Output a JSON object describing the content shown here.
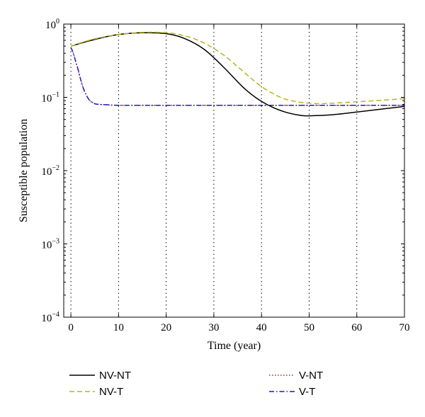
{
  "colors": {
    "NV-NT": "#000000",
    "NV-T": "#b5b51e",
    "V-NT": "#9e2a1e",
    "V-T": "#1a1acc"
  },
  "chart_data": {
    "type": "line",
    "title": "",
    "xlabel": "Time (year)",
    "ylabel": "Susceptible population",
    "yscale": "log",
    "xlim": [
      -1.5,
      70
    ],
    "ylim": [
      0.0001,
      1
    ],
    "xticks": [
      0,
      10,
      20,
      30,
      40,
      50,
      60,
      70
    ],
    "xtick_labels": [
      "0",
      "10",
      "20",
      "30",
      "40",
      "50",
      "60",
      "70"
    ],
    "yticks": [
      0.0001,
      0.001,
      0.01,
      0.1,
      1
    ],
    "ytick_labels": [
      {
        "base": "10",
        "exp": "−4"
      },
      {
        "base": "10",
        "exp": "−3"
      },
      {
        "base": "10",
        "exp": "−2"
      },
      {
        "base": "10",
        "exp": "−1"
      },
      {
        "base": "10",
        "exp": "0"
      }
    ],
    "grid": "vertical dotted",
    "legend_position": "below plot",
    "series": [
      {
        "name": "NV-NT",
        "style": "solid",
        "x": [
          0,
          3,
          6,
          10,
          15,
          20,
          24,
          28,
          32,
          36,
          39,
          42,
          45,
          48,
          50,
          55,
          60,
          65,
          70
        ],
        "y": [
          0.5,
          0.57,
          0.64,
          0.72,
          0.76,
          0.74,
          0.63,
          0.45,
          0.26,
          0.14,
          0.097,
          0.075,
          0.063,
          0.057,
          0.056,
          0.058,
          0.063,
          0.069,
          0.075
        ]
      },
      {
        "name": "NV-T",
        "style": "dashed",
        "x": [
          0,
          3,
          6,
          10,
          15,
          20,
          24,
          28,
          32,
          36,
          40,
          44,
          47,
          50,
          53,
          56,
          60,
          65,
          70
        ],
        "y": [
          0.5,
          0.58,
          0.65,
          0.72,
          0.77,
          0.76,
          0.69,
          0.55,
          0.38,
          0.23,
          0.14,
          0.1,
          0.088,
          0.083,
          0.082,
          0.084,
          0.087,
          0.091,
          0.096
        ]
      },
      {
        "name": "V-NT",
        "style": "dotted",
        "x": [
          0,
          0.5,
          1,
          1.5,
          2,
          2.5,
          3,
          3.5,
          4,
          5,
          6,
          8,
          10,
          20,
          30,
          40,
          50,
          60,
          70
        ],
        "y": [
          0.48,
          0.4,
          0.31,
          0.24,
          0.18,
          0.14,
          0.115,
          0.1,
          0.09,
          0.082,
          0.08,
          0.079,
          0.078,
          0.078,
          0.078,
          0.078,
          0.078,
          0.078,
          0.078
        ]
      },
      {
        "name": "V-T",
        "style": "dashdot",
        "x": [
          0,
          0.5,
          1,
          1.5,
          2,
          2.5,
          3,
          3.5,
          4,
          5,
          6,
          8,
          10,
          20,
          30,
          40,
          50,
          60,
          70
        ],
        "y": [
          0.48,
          0.4,
          0.31,
          0.24,
          0.18,
          0.14,
          0.115,
          0.1,
          0.09,
          0.082,
          0.08,
          0.079,
          0.078,
          0.078,
          0.078,
          0.078,
          0.078,
          0.078,
          0.078
        ]
      }
    ]
  }
}
